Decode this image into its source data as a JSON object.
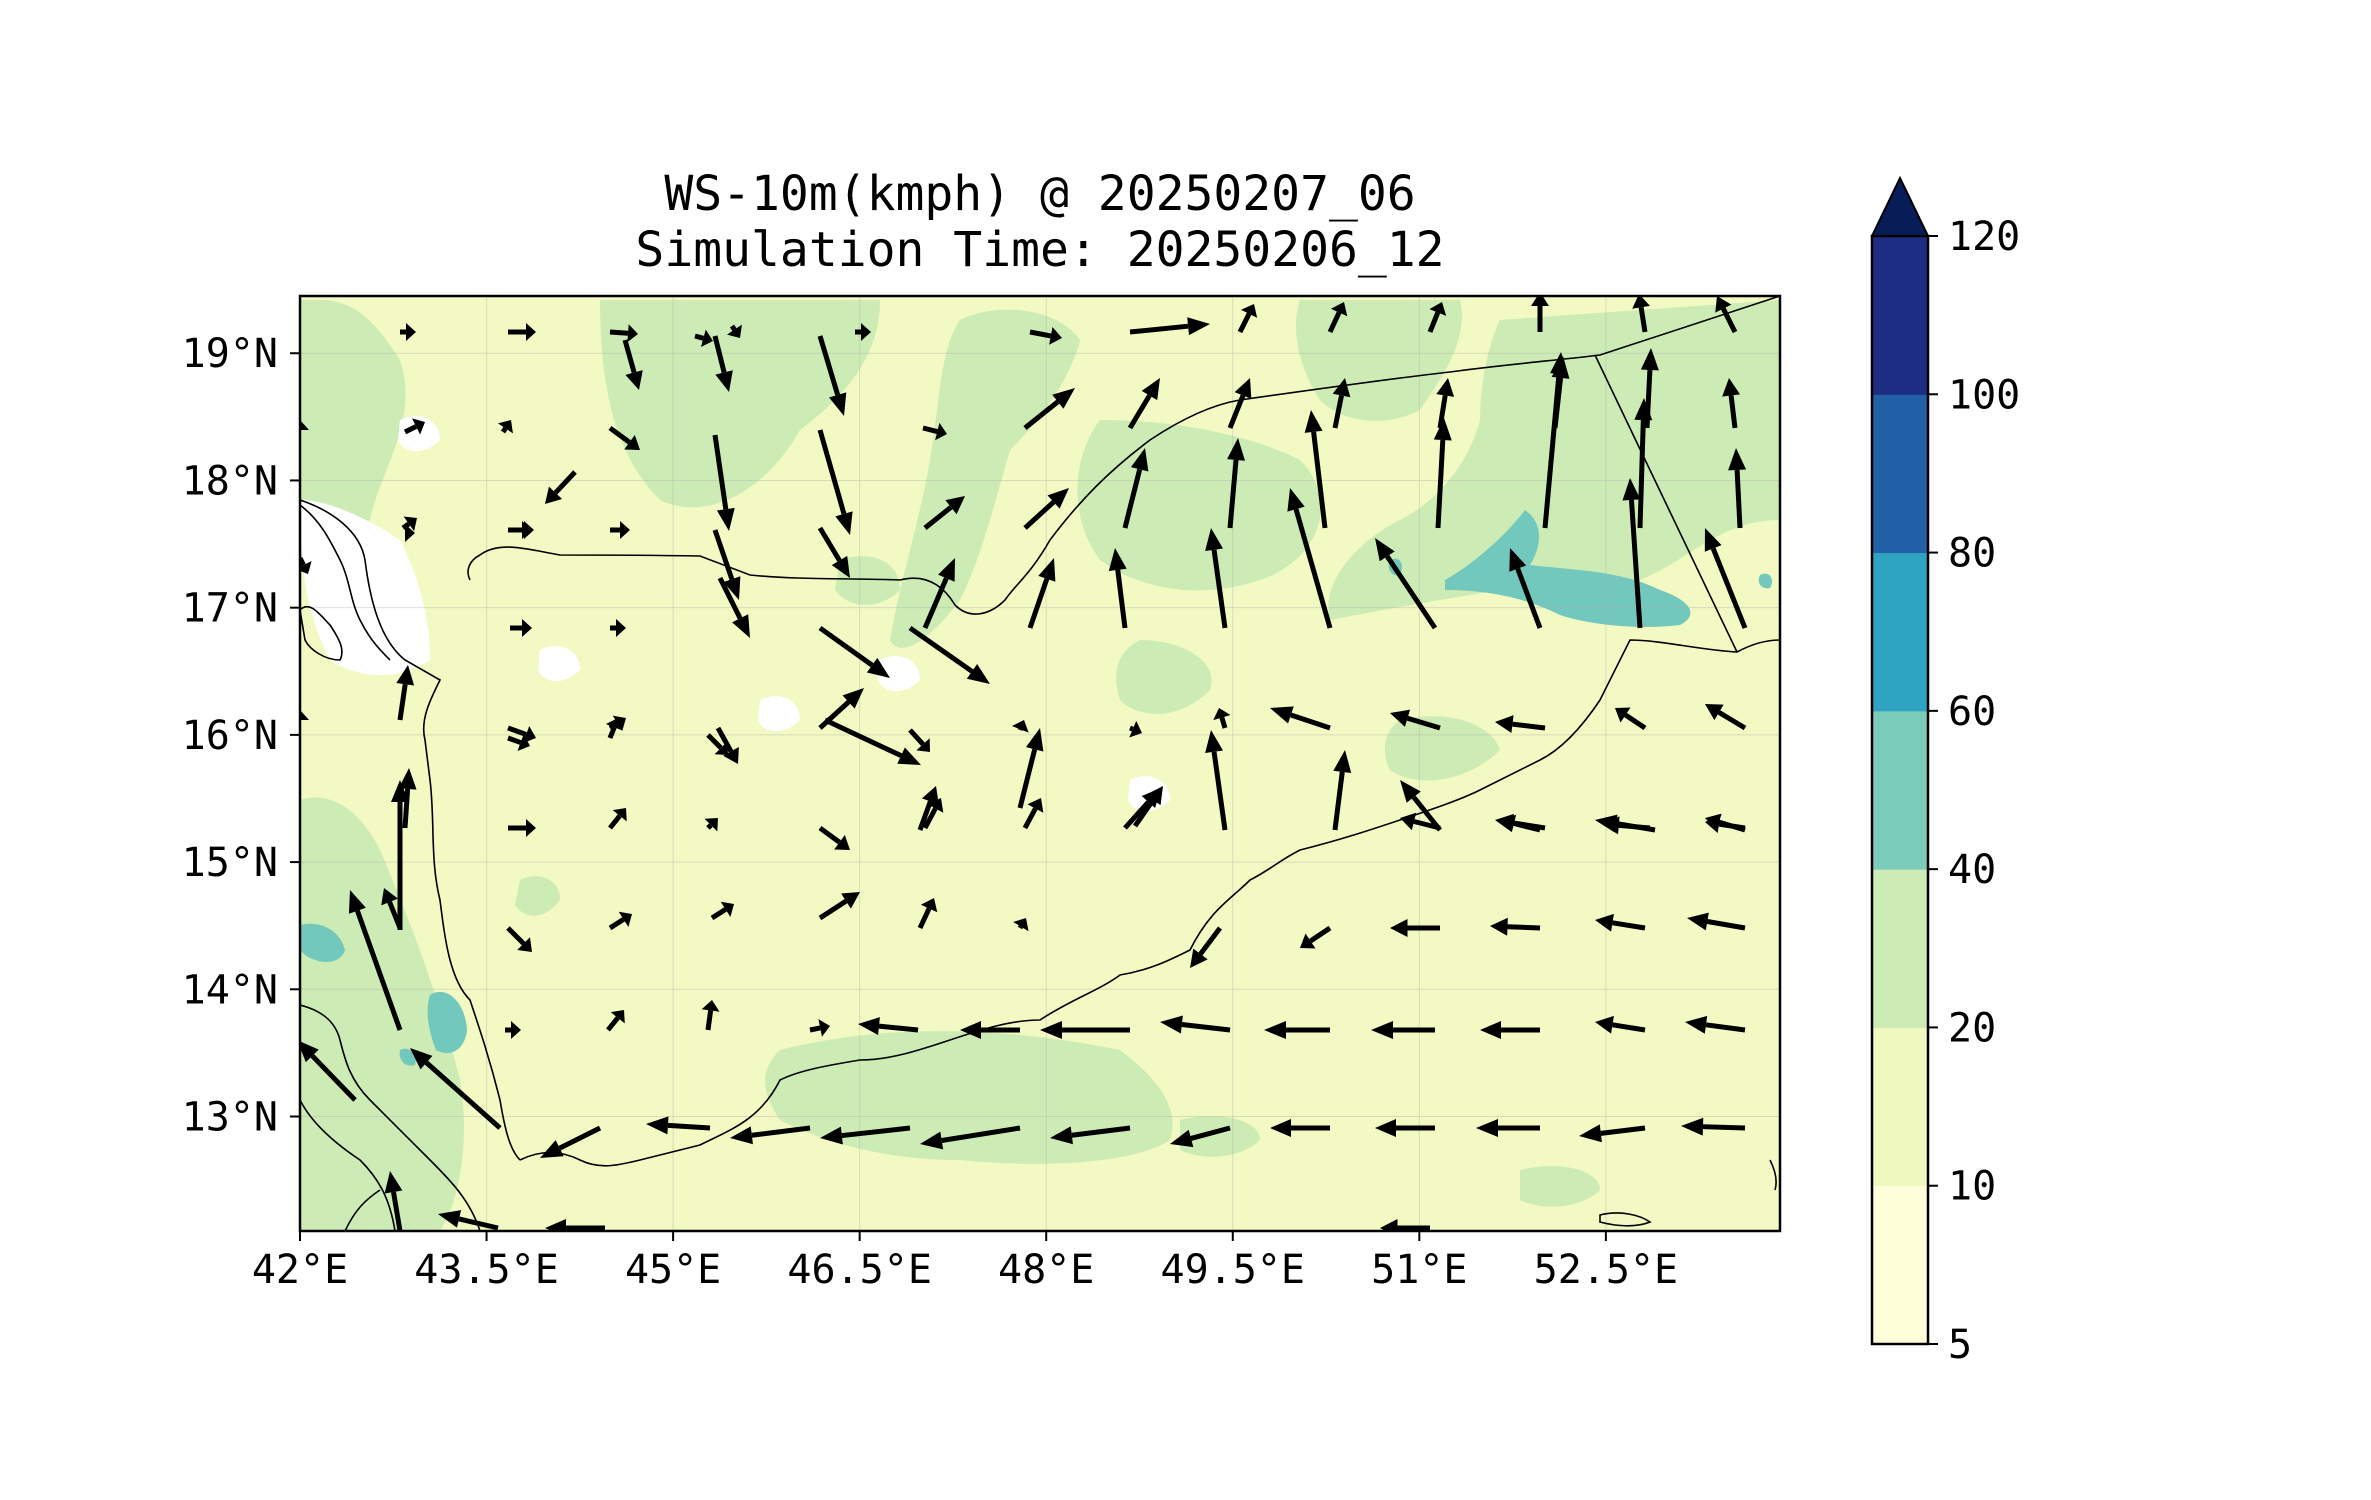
{
  "title_line1": "WS-10m(kmph) @ 20250207_06",
  "title_line2": "Simulation Time: 20250206_12",
  "lon_ticks": [
    "42°E",
    "43.5°E",
    "45°E",
    "46.5°E",
    "48°E",
    "49.5°E",
    "51°E",
    "52.5°E"
  ],
  "lat_ticks": [
    "19°N",
    "18°N",
    "17°N",
    "16°N",
    "15°N",
    "14°N",
    "13°N"
  ],
  "colorbar": {
    "ticks": [
      "5",
      "10",
      "20",
      "40",
      "60",
      "80",
      "100",
      "120"
    ],
    "colors": [
      "#ffffd9",
      "#f0f9c0",
      "#cdebb4",
      "#7cccbc",
      "#2ea3c2",
      "#2260a8",
      "#1d2d83"
    ],
    "extend_color": "#081d58"
  },
  "colors": {
    "band_lt10": "#f2f9c2",
    "band_lt20": "#ebf6bc",
    "band_20_40": "#cdebb4",
    "band_40_60": "#72c8bd",
    "calm": "#ffffff"
  },
  "chart_data": {
    "type": "map",
    "projection": "plate-carree",
    "xlim": [
      42,
      53.9
    ],
    "ylim": [
      12.1,
      19.45
    ],
    "variable": "WS-10m(kmph)",
    "contour_levels": [
      5,
      10,
      20,
      40,
      60,
      80,
      100,
      120
    ],
    "grid": true
  }
}
